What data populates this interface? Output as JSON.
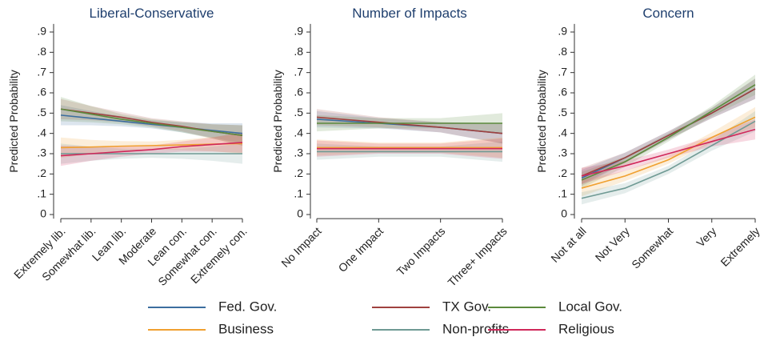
{
  "chart_data": [
    {
      "type": "line",
      "title": "Liberal-Conservative",
      "ylabel": "Predicted Probability",
      "categories": [
        "Extremely lib.",
        "Somewhat lib.",
        "Lean lib.",
        "Moderate",
        "Lean con.",
        "Somewhat con.",
        "Extremely con."
      ],
      "ylim": [
        -0.02,
        0.94
      ],
      "yticks": [
        {
          "value": 0,
          "label": "0"
        },
        {
          "value": 0.1,
          "label": ".1"
        },
        {
          "value": 0.2,
          "label": ".2"
        },
        {
          "value": 0.3,
          "label": ".3"
        },
        {
          "value": 0.4,
          "label": ".4"
        },
        {
          "value": 0.5,
          "label": ".5"
        },
        {
          "value": 0.6,
          "label": ".6"
        },
        {
          "value": 0.7,
          "label": ".7"
        },
        {
          "value": 0.8,
          "label": ".8"
        },
        {
          "value": 0.9,
          "label": ".9"
        }
      ],
      "series": [
        {
          "name": "Fed. Gov.",
          "color": "#3c6e9f",
          "values": [
            0.49,
            0.475,
            0.46,
            0.445,
            0.43,
            0.415,
            0.4
          ],
          "lower": [
            0.44,
            0.44,
            0.435,
            0.425,
            0.405,
            0.38,
            0.35
          ],
          "upper": [
            0.54,
            0.51,
            0.485,
            0.465,
            0.455,
            0.45,
            0.45
          ]
        },
        {
          "name": "TX Gov.",
          "color": "#a0413f",
          "values": [
            0.52,
            0.5,
            0.48,
            0.455,
            0.435,
            0.41,
            0.39
          ],
          "lower": [
            0.47,
            0.465,
            0.455,
            0.435,
            0.41,
            0.375,
            0.34
          ],
          "upper": [
            0.57,
            0.535,
            0.505,
            0.475,
            0.46,
            0.445,
            0.44
          ]
        },
        {
          "name": "Local Gov.",
          "color": "#5b8a3c",
          "values": [
            0.52,
            0.495,
            0.47,
            0.45,
            0.43,
            0.41,
            0.39
          ],
          "lower": [
            0.46,
            0.455,
            0.445,
            0.43,
            0.405,
            0.375,
            0.34
          ],
          "upper": [
            0.58,
            0.535,
            0.495,
            0.47,
            0.455,
            0.445,
            0.44
          ]
        },
        {
          "name": "Business",
          "color": "#f0a030",
          "values": [
            0.33,
            0.333,
            0.337,
            0.34,
            0.343,
            0.347,
            0.35
          ],
          "lower": [
            0.28,
            0.298,
            0.312,
            0.32,
            0.318,
            0.312,
            0.3
          ],
          "upper": [
            0.38,
            0.368,
            0.362,
            0.36,
            0.368,
            0.382,
            0.4
          ]
        },
        {
          "name": "Non-profits",
          "color": "#6f9a94",
          "values": [
            0.3,
            0.3,
            0.3,
            0.3,
            0.3,
            0.3,
            0.3
          ],
          "lower": [
            0.25,
            0.265,
            0.275,
            0.28,
            0.275,
            0.265,
            0.25
          ],
          "upper": [
            0.35,
            0.335,
            0.325,
            0.32,
            0.325,
            0.335,
            0.35
          ]
        },
        {
          "name": "Religious",
          "color": "#d0285a",
          "values": [
            0.29,
            0.3,
            0.31,
            0.32,
            0.335,
            0.345,
            0.355
          ],
          "lower": [
            0.24,
            0.265,
            0.285,
            0.3,
            0.31,
            0.31,
            0.305
          ],
          "upper": [
            0.34,
            0.335,
            0.335,
            0.34,
            0.36,
            0.38,
            0.405
          ]
        }
      ]
    },
    {
      "type": "line",
      "title": "Number of Impacts",
      "ylabel": "Predicted Probability",
      "categories": [
        "No Impact",
        "One Impact",
        "Two Impacts",
        "Three+ Impacts"
      ],
      "ylim": [
        -0.02,
        0.94
      ],
      "yticks": [
        {
          "value": 0,
          "label": "0"
        },
        {
          "value": 0.1,
          "label": ".1"
        },
        {
          "value": 0.2,
          "label": ".2"
        },
        {
          "value": 0.3,
          "label": ".3"
        },
        {
          "value": 0.4,
          "label": ".4"
        },
        {
          "value": 0.5,
          "label": ".5"
        },
        {
          "value": 0.6,
          "label": ".6"
        },
        {
          "value": 0.7,
          "label": ".7"
        },
        {
          "value": 0.8,
          "label": ".8"
        },
        {
          "value": 0.9,
          "label": ".9"
        }
      ],
      "series": [
        {
          "name": "Fed. Gov.",
          "color": "#3c6e9f",
          "values": [
            0.47,
            0.45,
            0.43,
            0.4
          ],
          "lower": [
            0.43,
            0.425,
            0.405,
            0.35
          ],
          "upper": [
            0.51,
            0.475,
            0.455,
            0.45
          ]
        },
        {
          "name": "TX Gov.",
          "color": "#a0413f",
          "values": [
            0.48,
            0.455,
            0.43,
            0.4
          ],
          "lower": [
            0.44,
            0.43,
            0.405,
            0.35
          ],
          "upper": [
            0.52,
            0.48,
            0.455,
            0.45
          ]
        },
        {
          "name": "Local Gov.",
          "color": "#5b8a3c",
          "values": [
            0.45,
            0.45,
            0.45,
            0.45
          ],
          "lower": [
            0.41,
            0.425,
            0.425,
            0.4
          ],
          "upper": [
            0.49,
            0.475,
            0.475,
            0.5
          ]
        },
        {
          "name": "Business",
          "color": "#f0a030",
          "values": [
            0.33,
            0.33,
            0.33,
            0.33
          ],
          "lower": [
            0.29,
            0.305,
            0.305,
            0.28
          ],
          "upper": [
            0.37,
            0.355,
            0.355,
            0.38
          ]
        },
        {
          "name": "Non-profits",
          "color": "#6f9a94",
          "values": [
            0.31,
            0.31,
            0.31,
            0.31
          ],
          "lower": [
            0.27,
            0.285,
            0.285,
            0.26
          ],
          "upper": [
            0.35,
            0.335,
            0.335,
            0.36
          ]
        },
        {
          "name": "Religious",
          "color": "#d0285a",
          "values": [
            0.325,
            0.325,
            0.325,
            0.325
          ],
          "lower": [
            0.285,
            0.3,
            0.3,
            0.275
          ],
          "upper": [
            0.365,
            0.35,
            0.35,
            0.375
          ]
        }
      ]
    },
    {
      "type": "line",
      "title": "Concern",
      "ylabel": "Predicted Probability",
      "categories": [
        "Not at all",
        "Not Very",
        "Somewhat",
        "Very",
        "Extremely"
      ],
      "ylim": [
        -0.02,
        0.94
      ],
      "yticks": [
        {
          "value": 0,
          "label": "0"
        },
        {
          "value": 0.1,
          "label": ".1"
        },
        {
          "value": 0.2,
          "label": ".2"
        },
        {
          "value": 0.3,
          "label": ".3"
        },
        {
          "value": 0.4,
          "label": ".4"
        },
        {
          "value": 0.5,
          "label": ".5"
        },
        {
          "value": 0.6,
          "label": ".6"
        },
        {
          "value": 0.7,
          "label": ".7"
        },
        {
          "value": 0.8,
          "label": ".8"
        },
        {
          "value": 0.9,
          "label": ".9"
        }
      ],
      "series": [
        {
          "name": "Fed. Gov.",
          "color": "#3c6e9f",
          "values": [
            0.18,
            0.28,
            0.39,
            0.5,
            0.62
          ],
          "lower": [
            0.14,
            0.255,
            0.37,
            0.475,
            0.57
          ],
          "upper": [
            0.22,
            0.305,
            0.41,
            0.525,
            0.67
          ]
        },
        {
          "name": "TX Gov.",
          "color": "#a0413f",
          "values": [
            0.19,
            0.28,
            0.39,
            0.5,
            0.62
          ],
          "lower": [
            0.15,
            0.255,
            0.37,
            0.475,
            0.57
          ],
          "upper": [
            0.23,
            0.305,
            0.41,
            0.525,
            0.67
          ]
        },
        {
          "name": "Local Gov.",
          "color": "#5b8a3c",
          "values": [
            0.17,
            0.26,
            0.38,
            0.51,
            0.64
          ],
          "lower": [
            0.13,
            0.235,
            0.36,
            0.485,
            0.59
          ],
          "upper": [
            0.21,
            0.285,
            0.4,
            0.535,
            0.69
          ]
        },
        {
          "name": "Business",
          "color": "#f0a030",
          "values": [
            0.13,
            0.19,
            0.27,
            0.38,
            0.48
          ],
          "lower": [
            0.09,
            0.165,
            0.25,
            0.355,
            0.43
          ],
          "upper": [
            0.17,
            0.215,
            0.29,
            0.405,
            0.53
          ]
        },
        {
          "name": "Non-profits",
          "color": "#6f9a94",
          "values": [
            0.08,
            0.13,
            0.22,
            0.34,
            0.46
          ],
          "lower": [
            0.05,
            0.105,
            0.2,
            0.315,
            0.41
          ],
          "upper": [
            0.11,
            0.155,
            0.24,
            0.365,
            0.51
          ]
        },
        {
          "name": "Religious",
          "color": "#d0285a",
          "values": [
            0.19,
            0.24,
            0.3,
            0.36,
            0.42
          ],
          "lower": [
            0.15,
            0.215,
            0.28,
            0.335,
            0.37
          ],
          "upper": [
            0.23,
            0.265,
            0.32,
            0.385,
            0.47
          ]
        }
      ]
    }
  ]
}
